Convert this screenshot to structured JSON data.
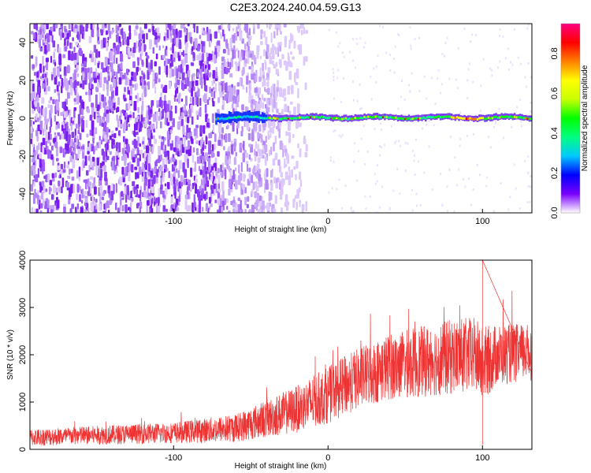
{
  "title": "C2E3.2024.240.04.59.G13",
  "chart_data": [
    {
      "type": "heatmap",
      "xlabel": "Height of straight line (km)",
      "ylabel": "Frequency (Hz)",
      "xlim": [
        -193,
        132
      ],
      "ylim": [
        -50,
        50
      ],
      "xticks": [
        -100,
        0,
        100
      ],
      "yticks": [
        -40,
        -20,
        0,
        20,
        40
      ],
      "grid": false,
      "colorbar": {
        "label": "Normalized spectral amplitude",
        "range": [
          0,
          0.95
        ],
        "ticks": [
          "0.0",
          "0.2",
          "0.4",
          "0.6",
          "0.8"
        ],
        "colors": [
          "#ffffff",
          "#7a00ff",
          "#0000ff",
          "#00c8ff",
          "#00ff80",
          "#00ff00",
          "#c8ff00",
          "#ffff00",
          "#ff8000",
          "#ff0000",
          "#ff0080"
        ]
      },
      "features": {
        "noise_region_x": [
          -193,
          0
        ],
        "strong_noise_x": [
          -193,
          -73
        ],
        "signal_start_x": -73,
        "signal_center_hz": 0
      }
    },
    {
      "type": "line",
      "xlabel": "Height of straight line (km)",
      "ylabel": "SNR (10 * v/v)",
      "xlim": [
        -193,
        132
      ],
      "ylim": [
        0,
        4000
      ],
      "xticks": [
        -100,
        0,
        100
      ],
      "yticks": [
        0,
        1000,
        2000,
        3000,
        4000
      ],
      "grid": false,
      "series_color": "#ee3333",
      "envelope": {
        "x": [
          -193,
          -150,
          -100,
          -60,
          -40,
          -20,
          0,
          20,
          40,
          60,
          80,
          95,
          100,
          110,
          132
        ],
        "mean": [
          250,
          300,
          350,
          450,
          650,
          850,
          1150,
          1500,
          1750,
          1850,
          1950,
          2000,
          1800,
          2000,
          2050
        ],
        "spread": [
          180,
          200,
          220,
          300,
          400,
          500,
          600,
          650,
          700,
          750,
          800,
          800,
          800,
          650,
          600
        ]
      },
      "notable_points": [
        {
          "x": 100,
          "y": 4000
        },
        {
          "x": 100,
          "y": 100
        }
      ]
    }
  ]
}
